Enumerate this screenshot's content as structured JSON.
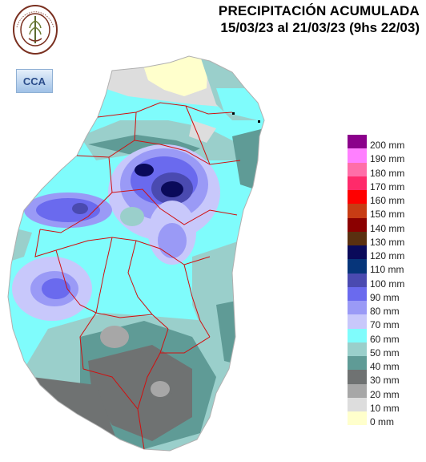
{
  "header": {
    "title": "PRECIPITACIÓN ACUMULADA",
    "period": "15/03/23 al 21/03/23 (9hs 22/03)"
  },
  "logos": {
    "seal_text": "BOLSA DE CEREALES DE ENTRE RIOS",
    "cca_text": "CCA"
  },
  "legend": {
    "unit": "mm",
    "items": [
      {
        "label": "200 mm",
        "color": "#8b008b"
      },
      {
        "label": "190 mm",
        "color": "#ff80ff"
      },
      {
        "label": "180 mm",
        "color": "#ff6ea8"
      },
      {
        "label": "170 mm",
        "color": "#ff2a6a"
      },
      {
        "label": "160 mm",
        "color": "#ff0000"
      },
      {
        "label": "150 mm",
        "color": "#c83c14"
      },
      {
        "label": "140 mm",
        "color": "#8b0000"
      },
      {
        "label": "130 mm",
        "color": "#5a3010"
      },
      {
        "label": "120 mm",
        "color": "#0a0a5a"
      },
      {
        "label": "110 mm",
        "color": "#06357a"
      },
      {
        "label": "100 mm",
        "color": "#4a4ab0"
      },
      {
        "label": "90 mm",
        "color": "#6a6aee"
      },
      {
        "label": "80 mm",
        "color": "#9a9af6"
      },
      {
        "label": "70 mm",
        "color": "#c8c8fb"
      },
      {
        "label": "60 mm",
        "color": "#7ffcfc"
      },
      {
        "label": "50 mm",
        "color": "#9acfcb"
      },
      {
        "label": "40 mm",
        "color": "#5f9b96"
      },
      {
        "label": "30 mm",
        "color": "#6f7272"
      },
      {
        "label": "20 mm",
        "color": "#a7a7a7"
      },
      {
        "label": "10 mm",
        "color": "#dddddd"
      },
      {
        "label": "0 mm",
        "color": "#ffffcc"
      }
    ]
  }
}
